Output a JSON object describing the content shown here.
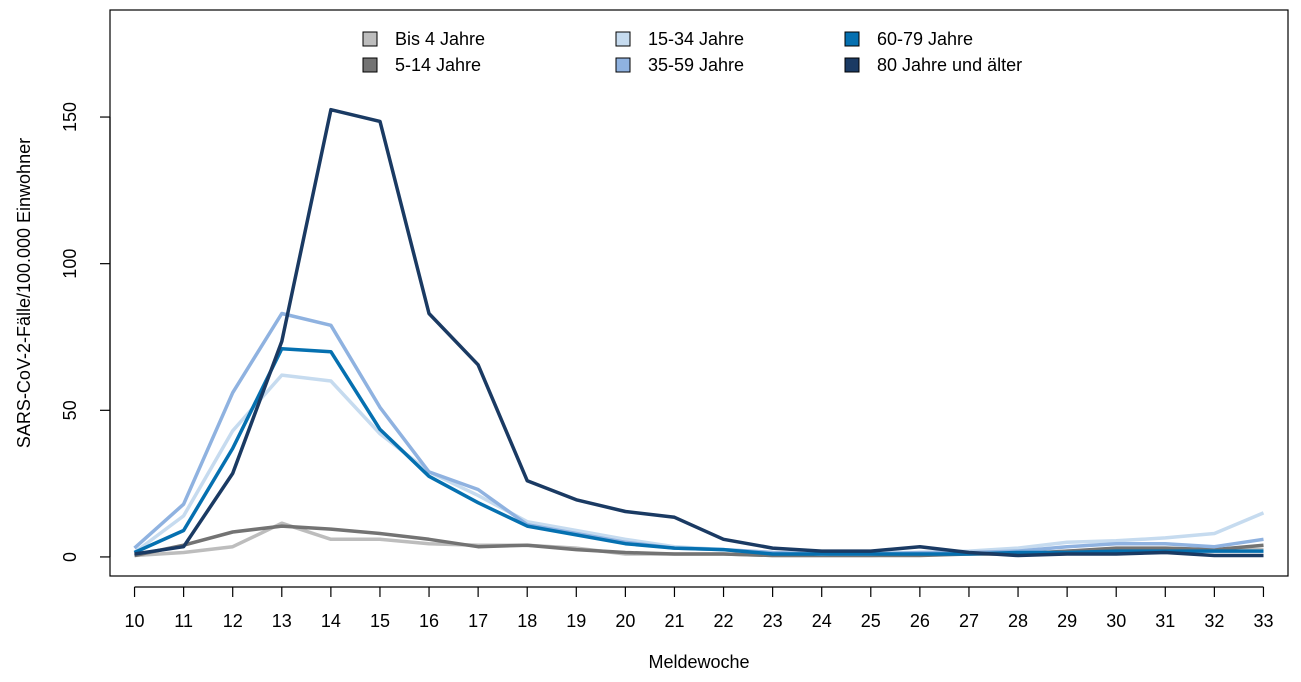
{
  "chart_data": {
    "type": "line",
    "xlabel": "Meldewoche",
    "ylabel": "SARS-CoV-2-Fälle/100.000 Einwohner",
    "x": [
      10,
      11,
      12,
      13,
      14,
      15,
      16,
      17,
      18,
      19,
      20,
      21,
      22,
      23,
      24,
      25,
      26,
      27,
      28,
      29,
      30,
      31,
      32,
      33
    ],
    "xlim": [
      9.5,
      33.5
    ],
    "ylim": [
      -6.5,
      186.5
    ],
    "y_ticks": [
      0,
      50,
      100,
      150
    ],
    "grid": false,
    "legend_position": "top-center",
    "series": [
      {
        "name": "Bis 4 Jahre",
        "color": "#bdbdbd",
        "values": [
          0.5,
          1.5,
          3.5,
          11.5,
          6,
          6,
          4.5,
          4,
          4,
          3,
          1,
          1,
          1,
          0.5,
          0.5,
          0.5,
          1,
          1,
          1,
          2,
          2.5,
          2.5,
          2.5,
          2.5
        ]
      },
      {
        "name": "5-14 Jahre",
        "color": "#737373",
        "values": [
          0.5,
          4,
          8.5,
          10.5,
          9.5,
          8,
          6,
          3.5,
          4,
          2.5,
          1.5,
          1,
          1,
          0.5,
          0.5,
          0.5,
          0.5,
          1,
          1,
          2,
          3,
          3,
          2.5,
          4
        ]
      },
      {
        "name": "15-34 Jahre",
        "color": "#c6dbef",
        "values": [
          1.5,
          14,
          43,
          62,
          60,
          42,
          29,
          21,
          12,
          9,
          6,
          3.5,
          2.5,
          1.5,
          1,
          1.5,
          1.5,
          2,
          3,
          5,
          5.5,
          6.5,
          8,
          15
        ]
      },
      {
        "name": "35-59 Jahre",
        "color": "#8fb2e0",
        "values": [
          3,
          18,
          56,
          83,
          79,
          51,
          29,
          23,
          11,
          8,
          5,
          3,
          2.5,
          1.5,
          1,
          1,
          1.5,
          1.5,
          2,
          3.5,
          4.5,
          4.5,
          3.5,
          6
        ]
      },
      {
        "name": "60-79 Jahre",
        "color": "#0570b0",
        "values": [
          1.5,
          9,
          37,
          71,
          70,
          43.5,
          27.5,
          18.5,
          10.5,
          7.5,
          4.5,
          3,
          2.5,
          1,
          1,
          1,
          1,
          1,
          1.5,
          1.5,
          2,
          2,
          2,
          2
        ]
      },
      {
        "name": "80 Jahre und älter",
        "color": "#1a3a63",
        "values": [
          1,
          3.5,
          28.5,
          73.5,
          152.5,
          148.5,
          83,
          65.5,
          26,
          19.5,
          15.5,
          13.5,
          6,
          3,
          2,
          2,
          3.5,
          1.5,
          0.5,
          1,
          1,
          1.5,
          0.5,
          0.5
        ]
      }
    ]
  }
}
